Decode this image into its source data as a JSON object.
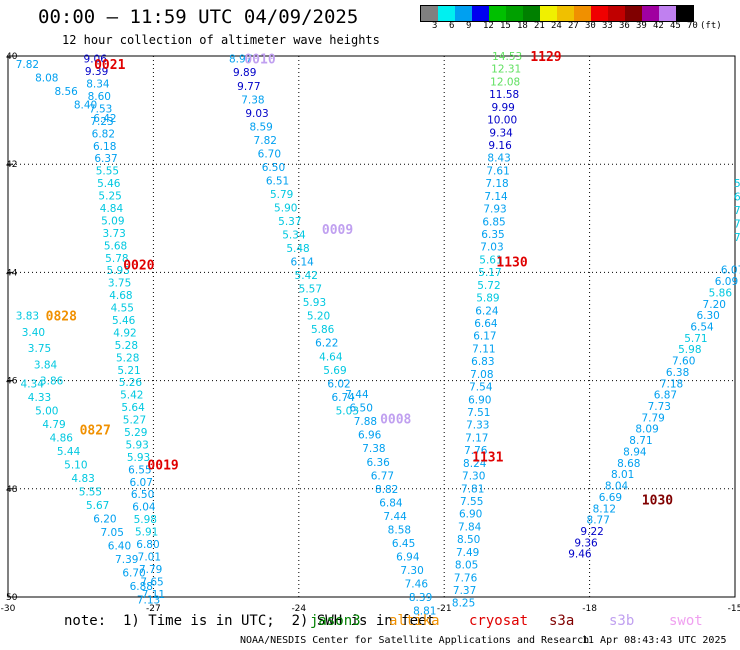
{
  "title": "00:00 – 11:59 UTC 04/09/2025",
  "subtitle": "12 hour collection of altimeter wave heights",
  "color_scale": {
    "unit": "(ft)",
    "labels": [
      "3",
      "6",
      "9",
      "12",
      "15",
      "18",
      "21",
      "24",
      "27",
      "30",
      "33",
      "36",
      "39",
      "42",
      "45",
      "70"
    ],
    "colors": [
      "#808080",
      "#00f0f0",
      "#00a0f0",
      "#0000f0",
      "#00c000",
      "#00a000",
      "#008000",
      "#f0f000",
      "#f0c000",
      "#f09000",
      "#f00000",
      "#c00000",
      "#800000",
      "#a000a0",
      "#c080f0",
      "#000000"
    ]
  },
  "footer": {
    "note": "note:  1) Time is in UTC;  2) SWH is in feet",
    "satellites": [
      {
        "name": "jason3",
        "color": "#008000"
      },
      {
        "name": "altika",
        "color": "#f09000"
      },
      {
        "name": "cryosat",
        "color": "#e00000"
      },
      {
        "name": "s3a",
        "color": "#800000"
      },
      {
        "name": "s3b",
        "color": "#c0a0f0"
      },
      {
        "name": "swot",
        "color": "#f0a0f0"
      }
    ],
    "credit": "NOAA/NESDIS Center for Satellite Applications and Research",
    "timestamp": "11 Apr 08:43:43 UTC 2025"
  },
  "chart_data": {
    "type": "scatter",
    "title": "00:00 – 11:59 UTC 04/09/2025",
    "subtitle": "12 hour collection of altimeter wave heights",
    "x_ticks": [
      -30,
      -27,
      -24,
      -21,
      -18,
      -15
    ],
    "y_ticks": [
      40,
      42,
      44,
      46,
      48,
      50
    ],
    "xlim": [
      -30,
      -15
    ],
    "ylim": [
      40,
      50
    ],
    "y_inverted": true,
    "grid": true,
    "tracks": [
      {
        "id": "s3a-0021",
        "time_label": "0021",
        "label_lon": -27.9,
        "label_lat": 40.15,
        "label_color": "#e00000",
        "lon_top": -28.2,
        "lon_bottom": -27.0,
        "swh": [
          "9.06",
          "9.39",
          "8.34",
          "8.60",
          "7.53",
          "7.23",
          "6.82",
          "6.18",
          "6.37",
          "5.55",
          "5.46",
          "5.25",
          "4.84",
          "5.09",
          "3.73",
          "5.68",
          "5.78",
          "5.93",
          "3.75",
          "4.68",
          "4.55",
          "5.46",
          "4.92",
          "5.28",
          "5.28",
          "5.21",
          "5.26",
          "5.42",
          "5.64",
          "5.27",
          "5.29",
          "5.93",
          "5.93",
          "6.55",
          "6.07",
          "6.50",
          "6.04",
          "5.98",
          "5.91",
          "6.80",
          "7.01",
          "7.79",
          "7.65",
          "7.11"
        ]
      },
      {
        "id": "s3a-0020",
        "time_label": "0020",
        "label_lon": -27.3,
        "label_lat": 43.85,
        "label_color": "#e00000",
        "lon_top": -29.6,
        "lon_bottom": -28.0,
        "swh": [
          "7.82",
          "8.08",
          "8.56",
          "8.40",
          "6.42"
        ],
        "lat_start": 40.15,
        "lat_step": 0.25
      },
      {
        "id": "s3a-0019",
        "time_label": "0019",
        "label_lon": -26.8,
        "label_lat": 47.55,
        "label_color": "#e00000",
        "lon_top": -29.5,
        "lon_bottom": -27.1,
        "swh": [
          "4.34",
          "4.33",
          "5.00",
          "4.79",
          "4.86",
          "5.44",
          "5.10",
          "4.83",
          "5.55",
          "5.67",
          "6.20",
          "7.05",
          "6.40",
          "7.39",
          "6.70",
          "6.88",
          "7.13"
        ],
        "lat_start": 46.05,
        "lat_step": 0.25
      },
      {
        "id": "altika-0828",
        "time_label": "0828",
        "label_lon": -28.9,
        "label_lat": 44.8,
        "label_color": "#f09000",
        "lon_top": -29.6,
        "lon_bottom": -29.1,
        "swh": [
          "3.83",
          "3.40",
          "3.75",
          "3.84",
          "3.86"
        ],
        "lat_start": 44.8,
        "lat_step": 0.3
      },
      {
        "id": "altika-0827",
        "time_label": "0827",
        "label_lon": -28.2,
        "label_lat": 46.9,
        "label_color": "#f09000"
      },
      {
        "id": "s3b-0010",
        "time_label": "0010",
        "label_lon": -24.8,
        "label_lat": 40.05,
        "label_color": "#c0a0f0",
        "lon_top": -25.2,
        "lon_bottom": -23.0,
        "swh": [
          "8.97",
          "9.89",
          "9.77",
          "7.38",
          "9.03",
          "8.59",
          "7.82",
          "6.70",
          "6.50",
          "6.51",
          "5.79",
          "5.90",
          "5.37",
          "5.34",
          "5.48",
          "6.14",
          "5.42",
          "5.57",
          "5.93",
          "5.20",
          "5.86",
          "6.22",
          "4.64",
          "5.69",
          "6.02",
          "6.74",
          "5.03"
        ],
        "lat_start": 40.05,
        "lat_step": 0.25
      },
      {
        "id": "s3b-0009",
        "time_label": "0009",
        "label_lon": -23.2,
        "label_lat": 43.2,
        "label_color": "#c0a0f0"
      },
      {
        "id": "s3b-0008",
        "time_label": "0008",
        "label_lon": -22.0,
        "label_lat": 46.7,
        "label_color": "#c0a0f0",
        "lon_top": -22.8,
        "lon_bottom": -21.4,
        "swh": [
          "7.44",
          "6.50",
          "7.88",
          "6.96",
          "7.38",
          "6.36",
          "6.77",
          "8.82",
          "6.84",
          "7.44",
          "8.58",
          "6.45",
          "6.94",
          "7.30",
          "7.46",
          "8.39",
          "8.81"
        ],
        "lat_start": 46.25,
        "lat_step": 0.25
      },
      {
        "id": "cryosat-1129",
        "time_label": "1129",
        "label_lon": -18.9,
        "label_lat": 40.0,
        "label_color": "#e00000",
        "lon_top": -19.7,
        "lon_bottom": -20.6,
        "swh": [
          "14.53",
          "12.31",
          "12.08",
          "11.58",
          "9.99",
          "10.00",
          "9.34",
          "9.16",
          "8.43",
          "7.61",
          "7.18",
          "7.14",
          "7.93",
          "6.85",
          "6.35",
          "7.03",
          "5.61",
          "5.17",
          "5.72",
          "5.89",
          "6.24",
          "6.64",
          "6.17",
          "7.11",
          "6.83",
          "7.08",
          "7.54",
          "6.90",
          "7.51",
          "7.33",
          "7.17",
          "7.76",
          "8.24",
          "7.30",
          "7.81",
          "7.55",
          "6.90",
          "7.84",
          "8.50",
          "7.49",
          "8.05",
          "7.76",
          "7.37",
          "8.25"
        ],
        "lat_start": 40.0,
        "lat_step": 0.235
      },
      {
        "id": "cryosat-1130",
        "time_label": "1130",
        "label_lon": -19.6,
        "label_lat": 43.8,
        "label_color": "#e00000"
      },
      {
        "id": "cryosat-1131",
        "time_label": "1131",
        "label_lon": -20.1,
        "label_lat": 47.4,
        "label_color": "#e00000"
      },
      {
        "id": "s3a-1030",
        "time_label": "1030",
        "label_lon": -16.6,
        "label_lat": 48.2,
        "label_color": "#800000",
        "lon_top": -15.05,
        "lon_bottom": -18.2,
        "swh": [
          "6.07",
          "6.09",
          "5.86",
          "7.20",
          "6.30",
          "6.54",
          "5.71",
          "5.98",
          "7.60",
          "6.38",
          "7.18",
          "6.87",
          "7.73",
          "7.79",
          "8.09",
          "8.71",
          "8.94",
          "8.68",
          "8.01",
          "8.04",
          "6.69",
          "8.12",
          "8.77",
          "9.22",
          "9.36",
          "9.46"
        ],
        "lat_start": 43.95,
        "lat_step": 0.21
      }
    ],
    "partial_edge_values": [
      "5",
      "6.",
      "7.",
      "7.",
      "7.1"
    ]
  }
}
